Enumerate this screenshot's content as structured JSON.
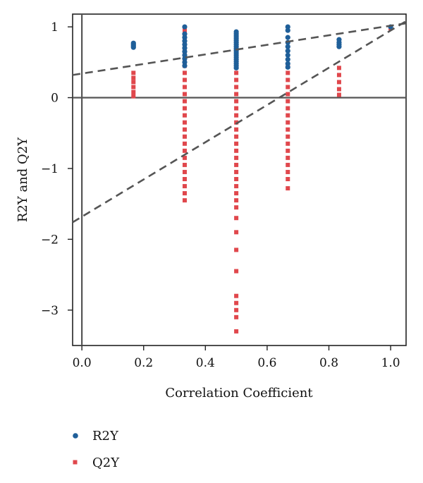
{
  "chart_data": {
    "type": "scatter",
    "title": "",
    "xlabel": "Correlation Coefficient",
    "ylabel": "R2Y and Q2Y",
    "xlim": [
      -0.03,
      1.05
    ],
    "ylim": [
      -3.5,
      1.18
    ],
    "x_ticks": [
      0.0,
      0.2,
      0.4,
      0.6,
      0.8,
      1.0
    ],
    "x_tick_labels": [
      "0.0",
      "0.2",
      "0.4",
      "0.6",
      "0.8",
      "1.0"
    ],
    "y_ticks": [
      1,
      0,
      -1,
      -2,
      -3
    ],
    "y_tick_labels": [
      "1",
      "0",
      "−1",
      "−2",
      "−3"
    ],
    "grid": false,
    "legend_position": "bottom-left",
    "reference_lines": [
      {
        "orientation": "vertical",
        "value": 0
      },
      {
        "orientation": "horizontal",
        "value": 0
      }
    ],
    "series": [
      {
        "name": "R2Y",
        "marker": "circle",
        "color": "#1f5f99",
        "points": [
          [
            0.167,
            0.77
          ],
          [
            0.167,
            0.75
          ],
          [
            0.167,
            0.73
          ],
          [
            0.167,
            0.71
          ],
          [
            0.333,
            1.0
          ],
          [
            0.333,
            0.9
          ],
          [
            0.333,
            0.85
          ],
          [
            0.333,
            0.8
          ],
          [
            0.333,
            0.75
          ],
          [
            0.333,
            0.7
          ],
          [
            0.333,
            0.65
          ],
          [
            0.333,
            0.6
          ],
          [
            0.333,
            0.55
          ],
          [
            0.333,
            0.5
          ],
          [
            0.333,
            0.45
          ],
          [
            0.5,
            0.93
          ],
          [
            0.5,
            0.9
          ],
          [
            0.5,
            0.87
          ],
          [
            0.5,
            0.84
          ],
          [
            0.5,
            0.81
          ],
          [
            0.5,
            0.78
          ],
          [
            0.5,
            0.75
          ],
          [
            0.5,
            0.72
          ],
          [
            0.5,
            0.69
          ],
          [
            0.5,
            0.66
          ],
          [
            0.5,
            0.63
          ],
          [
            0.5,
            0.6
          ],
          [
            0.5,
            0.57
          ],
          [
            0.5,
            0.54
          ],
          [
            0.5,
            0.51
          ],
          [
            0.5,
            0.48
          ],
          [
            0.5,
            0.45
          ],
          [
            0.5,
            0.42
          ],
          [
            0.667,
            1.0
          ],
          [
            0.667,
            0.95
          ],
          [
            0.667,
            0.85
          ],
          [
            0.667,
            0.78
          ],
          [
            0.667,
            0.72
          ],
          [
            0.667,
            0.66
          ],
          [
            0.667,
            0.6
          ],
          [
            0.667,
            0.54
          ],
          [
            0.667,
            0.48
          ],
          [
            0.667,
            0.43
          ],
          [
            0.833,
            0.82
          ],
          [
            0.833,
            0.78
          ],
          [
            0.833,
            0.75
          ],
          [
            0.833,
            0.72
          ],
          [
            1.0,
            1.0
          ]
        ]
      },
      {
        "name": "Q2Y",
        "marker": "square",
        "color": "#e0474c",
        "points": [
          [
            0.167,
            0.35
          ],
          [
            0.167,
            0.28
          ],
          [
            0.167,
            0.22
          ],
          [
            0.167,
            0.15
          ],
          [
            0.167,
            0.08
          ],
          [
            0.167,
            0.02
          ],
          [
            0.333,
            0.95
          ],
          [
            0.333,
            0.85
          ],
          [
            0.333,
            0.75
          ],
          [
            0.333,
            0.65
          ],
          [
            0.333,
            0.55
          ],
          [
            0.333,
            0.45
          ],
          [
            0.333,
            0.35
          ],
          [
            0.333,
            0.25
          ],
          [
            0.333,
            0.15
          ],
          [
            0.333,
            0.05
          ],
          [
            0.333,
            -0.05
          ],
          [
            0.333,
            -0.15
          ],
          [
            0.333,
            -0.25
          ],
          [
            0.333,
            -0.35
          ],
          [
            0.333,
            -0.45
          ],
          [
            0.333,
            -0.55
          ],
          [
            0.333,
            -0.65
          ],
          [
            0.333,
            -0.75
          ],
          [
            0.333,
            -0.85
          ],
          [
            0.333,
            -0.95
          ],
          [
            0.333,
            -1.05
          ],
          [
            0.333,
            -1.15
          ],
          [
            0.333,
            -1.25
          ],
          [
            0.333,
            -1.35
          ],
          [
            0.333,
            -1.45
          ],
          [
            0.5,
            0.55
          ],
          [
            0.5,
            0.45
          ],
          [
            0.5,
            0.35
          ],
          [
            0.5,
            0.25
          ],
          [
            0.5,
            0.15
          ],
          [
            0.5,
            0.05
          ],
          [
            0.5,
            -0.05
          ],
          [
            0.5,
            -0.15
          ],
          [
            0.5,
            -0.25
          ],
          [
            0.5,
            -0.35
          ],
          [
            0.5,
            -0.45
          ],
          [
            0.5,
            -0.55
          ],
          [
            0.5,
            -0.65
          ],
          [
            0.5,
            -0.75
          ],
          [
            0.5,
            -0.85
          ],
          [
            0.5,
            -0.95
          ],
          [
            0.5,
            -1.05
          ],
          [
            0.5,
            -1.15
          ],
          [
            0.5,
            -1.25
          ],
          [
            0.5,
            -1.35
          ],
          [
            0.5,
            -1.45
          ],
          [
            0.5,
            -1.55
          ],
          [
            0.5,
            -1.7
          ],
          [
            0.5,
            -1.9
          ],
          [
            0.5,
            -2.15
          ],
          [
            0.5,
            -2.45
          ],
          [
            0.5,
            -2.8
          ],
          [
            0.5,
            -2.9
          ],
          [
            0.5,
            -3.0
          ],
          [
            0.5,
            -3.1
          ],
          [
            0.5,
            -3.3
          ],
          [
            0.667,
            0.45
          ],
          [
            0.667,
            0.35
          ],
          [
            0.667,
            0.25
          ],
          [
            0.667,
            0.15
          ],
          [
            0.667,
            0.05
          ],
          [
            0.667,
            -0.05
          ],
          [
            0.667,
            -0.15
          ],
          [
            0.667,
            -0.25
          ],
          [
            0.667,
            -0.35
          ],
          [
            0.667,
            -0.45
          ],
          [
            0.667,
            -0.55
          ],
          [
            0.667,
            -0.65
          ],
          [
            0.667,
            -0.75
          ],
          [
            0.667,
            -0.85
          ],
          [
            0.667,
            -0.95
          ],
          [
            0.667,
            -1.05
          ],
          [
            0.667,
            -1.15
          ],
          [
            0.667,
            -1.28
          ],
          [
            0.833,
            0.42
          ],
          [
            0.833,
            0.32
          ],
          [
            0.833,
            0.22
          ],
          [
            0.833,
            0.12
          ],
          [
            0.833,
            0.04
          ],
          [
            1.0,
            0.98
          ]
        ]
      }
    ],
    "regression_lines": [
      {
        "series": "R2Y",
        "x": [
          -0.03,
          1.05
        ],
        "y": [
          0.32,
          1.05
        ],
        "style": "dashed",
        "color": "#555555"
      },
      {
        "series": "Q2Y",
        "x": [
          -0.03,
          1.05
        ],
        "y": [
          -1.76,
          1.08
        ],
        "style": "dashed",
        "color": "#555555"
      }
    ]
  }
}
